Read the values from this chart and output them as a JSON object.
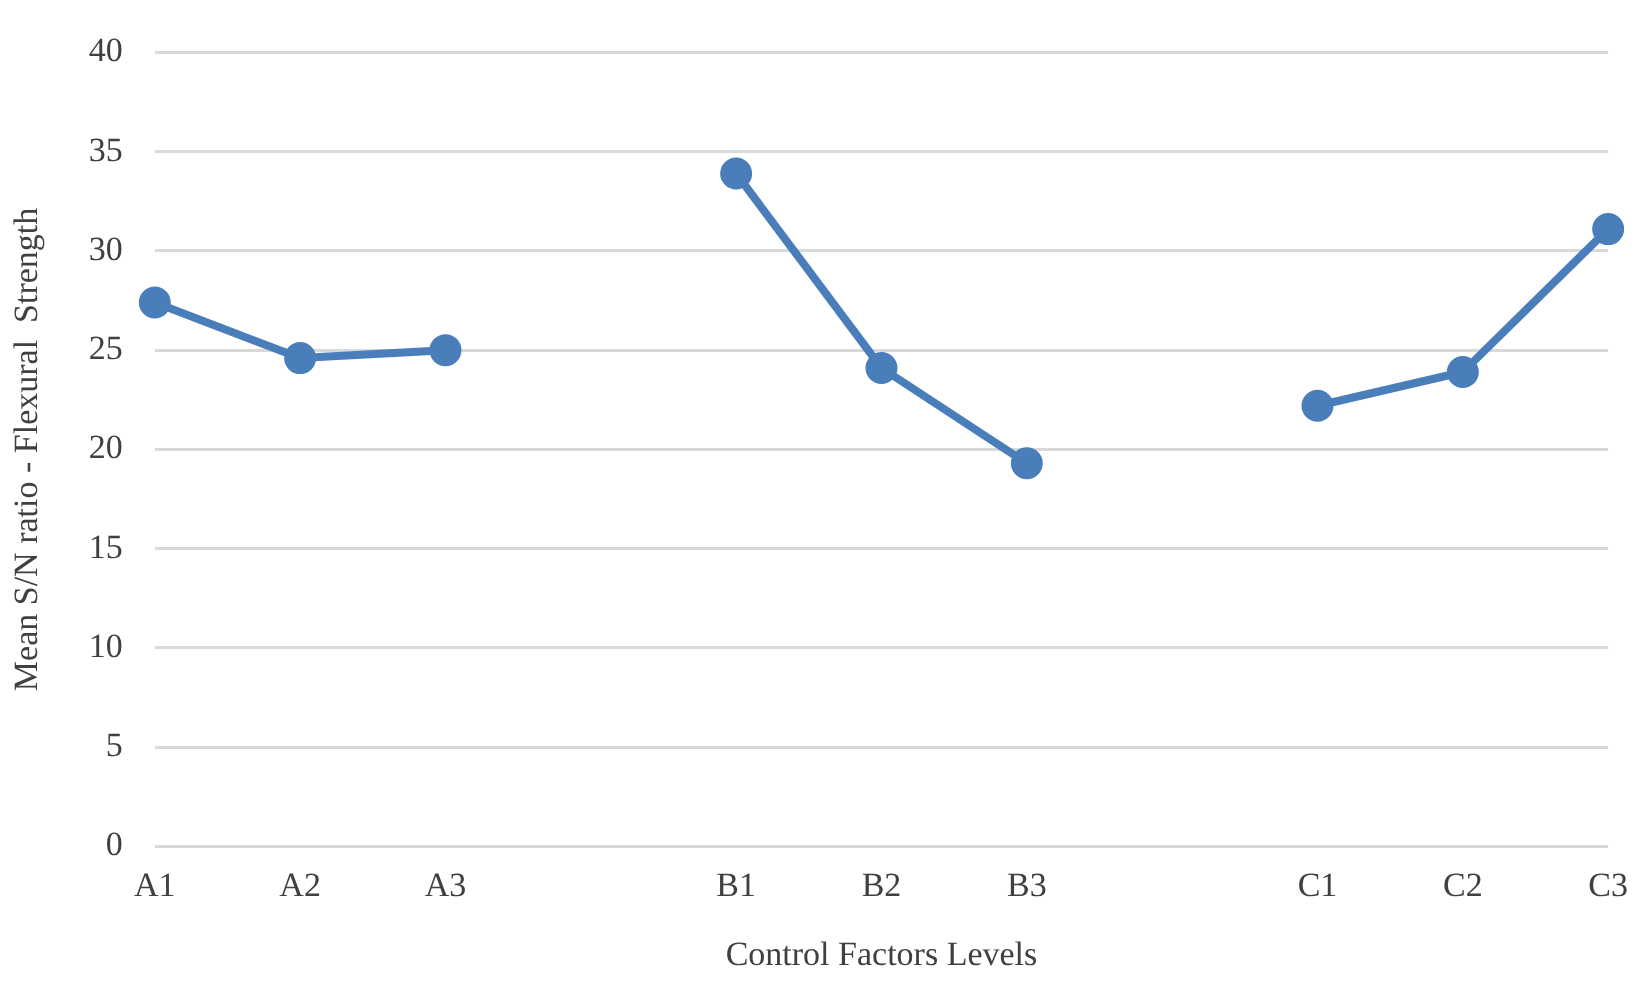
{
  "chart_data": {
    "type": "line",
    "xlabel": "Control Factors Levels",
    "ylabel": "Mean S/N ratio - Flexural  Strength",
    "categories": [
      "A1",
      "A2",
      "A3",
      null,
      "B1",
      "B2",
      "B3",
      null,
      "C1",
      "C2",
      "C3"
    ],
    "series": [
      {
        "color": "#4a7ebb",
        "values": [
          27.4,
          24.6,
          25.0,
          null,
          33.9,
          24.1,
          19.3,
          null,
          22.2,
          23.9,
          31.1
        ]
      }
    ],
    "ylim": [
      0,
      40
    ],
    "yticks": [
      0,
      5,
      10,
      15,
      20,
      25,
      30,
      35,
      40
    ],
    "grid": "y",
    "legend": false,
    "marker": "circle",
    "line_style": "solid"
  }
}
